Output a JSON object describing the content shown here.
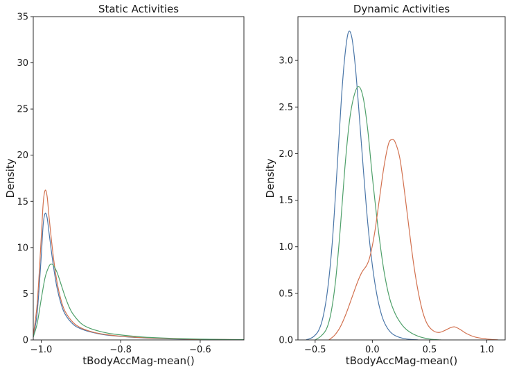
{
  "figure": {
    "background": "#ffffff",
    "text_color": "#1a1a1a",
    "spine_color": "#2b2b2b"
  },
  "chart_data": [
    {
      "type": "line",
      "title": "Static Activities",
      "xlabel": "tBodyAccMag-mean()",
      "ylabel": "Density",
      "xlim": [
        -1.02,
        -0.49
      ],
      "ylim": [
        0,
        35
      ],
      "grid": false,
      "legend": "none",
      "xticks": [
        -1.0,
        -0.8,
        -0.6
      ],
      "xtick_labels": [
        "−1.0",
        "−0.8",
        "−0.6"
      ],
      "yticks": [
        0,
        5,
        10,
        15,
        20,
        25,
        30,
        35
      ],
      "ytick_labels": [
        "0",
        "5",
        "10",
        "15",
        "20",
        "25",
        "30",
        "35"
      ],
      "series": [
        {
          "name": "blue-density",
          "color": "#4a76a8",
          "points": [
            [
              -1.02,
              0.3
            ],
            [
              -1.01,
              3.0
            ],
            [
              -1.0,
              9.0
            ],
            [
              -0.995,
              12.5
            ],
            [
              -0.99,
              13.7
            ],
            [
              -0.985,
              13.2
            ],
            [
              -0.98,
              11.5
            ],
            [
              -0.97,
              8.2
            ],
            [
              -0.96,
              5.6
            ],
            [
              -0.95,
              3.9
            ],
            [
              -0.94,
              2.8
            ],
            [
              -0.92,
              1.7
            ],
            [
              -0.9,
              1.2
            ],
            [
              -0.87,
              0.8
            ],
            [
              -0.84,
              0.55
            ],
            [
              -0.8,
              0.38
            ],
            [
              -0.76,
              0.26
            ],
            [
              -0.72,
              0.18
            ],
            [
              -0.66,
              0.1
            ],
            [
              -0.6,
              0.06
            ],
            [
              -0.55,
              0.04
            ],
            [
              -0.49,
              0.02
            ]
          ]
        },
        {
          "name": "orange-density",
          "color": "#d2714f",
          "points": [
            [
              -1.02,
              0.5
            ],
            [
              -1.01,
              4.0
            ],
            [
              -1.0,
              11.0
            ],
            [
              -0.995,
              14.8
            ],
            [
              -0.99,
              16.2
            ],
            [
              -0.985,
              15.5
            ],
            [
              -0.98,
              13.2
            ],
            [
              -0.97,
              9.2
            ],
            [
              -0.96,
              6.2
            ],
            [
              -0.95,
              4.3
            ],
            [
              -0.94,
              3.1
            ],
            [
              -0.92,
              1.9
            ],
            [
              -0.9,
              1.3
            ],
            [
              -0.87,
              0.85
            ],
            [
              -0.84,
              0.6
            ],
            [
              -0.8,
              0.4
            ],
            [
              -0.76,
              0.28
            ],
            [
              -0.72,
              0.2
            ],
            [
              -0.66,
              0.12
            ],
            [
              -0.6,
              0.07
            ],
            [
              -0.55,
              0.05
            ],
            [
              -0.49,
              0.03
            ]
          ]
        },
        {
          "name": "green-density",
          "color": "#4fa06a",
          "points": [
            [
              -1.02,
              0.3
            ],
            [
              -1.01,
              1.8
            ],
            [
              -1.0,
              4.4
            ],
            [
              -0.99,
              6.8
            ],
            [
              -0.98,
              8.0
            ],
            [
              -0.975,
              8.2
            ],
            [
              -0.97,
              8.1
            ],
            [
              -0.96,
              7.3
            ],
            [
              -0.95,
              6.0
            ],
            [
              -0.94,
              4.7
            ],
            [
              -0.93,
              3.6
            ],
            [
              -0.92,
              2.8
            ],
            [
              -0.9,
              1.8
            ],
            [
              -0.88,
              1.3
            ],
            [
              -0.85,
              0.9
            ],
            [
              -0.82,
              0.65
            ],
            [
              -0.78,
              0.45
            ],
            [
              -0.74,
              0.3
            ],
            [
              -0.7,
              0.22
            ],
            [
              -0.65,
              0.14
            ],
            [
              -0.6,
              0.09
            ],
            [
              -0.55,
              0.05
            ],
            [
              -0.49,
              0.03
            ]
          ]
        }
      ]
    },
    {
      "type": "line",
      "title": "Dynamic Activities",
      "xlabel": "tBodyAccMag-mean()",
      "ylabel": "Density",
      "xlim": [
        -0.65,
        1.16
      ],
      "ylim": [
        0,
        3.47
      ],
      "grid": false,
      "legend": "none",
      "xticks": [
        -0.5,
        0.0,
        0.5,
        1.0
      ],
      "xtick_labels": [
        "−0.5",
        "0.0",
        "0.5",
        "1.0"
      ],
      "yticks": [
        0,
        0.5,
        1.0,
        1.5,
        2.0,
        2.5,
        3.0
      ],
      "ytick_labels": [
        "0.0",
        "0.5",
        "1.0",
        "1.5",
        "2.0",
        "2.5",
        "3.0"
      ],
      "series": [
        {
          "name": "blue-density",
          "color": "#4a76a8",
          "points": [
            [
              -0.58,
              0.0
            ],
            [
              -0.52,
              0.03
            ],
            [
              -0.47,
              0.1
            ],
            [
              -0.43,
              0.25
            ],
            [
              -0.39,
              0.55
            ],
            [
              -0.35,
              1.05
            ],
            [
              -0.31,
              1.8
            ],
            [
              -0.27,
              2.6
            ],
            [
              -0.24,
              3.05
            ],
            [
              -0.21,
              3.3
            ],
            [
              -0.18,
              3.25
            ],
            [
              -0.15,
              2.95
            ],
            [
              -0.12,
              2.5
            ],
            [
              -0.08,
              1.85
            ],
            [
              -0.04,
              1.25
            ],
            [
              0.0,
              0.8
            ],
            [
              0.04,
              0.48
            ],
            [
              0.08,
              0.27
            ],
            [
              0.12,
              0.15
            ],
            [
              0.17,
              0.07
            ],
            [
              0.23,
              0.03
            ],
            [
              0.3,
              0.01
            ],
            [
              0.4,
              0.0
            ]
          ]
        },
        {
          "name": "green-density",
          "color": "#4fa06a",
          "points": [
            [
              -0.5,
              0.0
            ],
            [
              -0.45,
              0.04
            ],
            [
              -0.4,
              0.12
            ],
            [
              -0.36,
              0.3
            ],
            [
              -0.32,
              0.65
            ],
            [
              -0.28,
              1.2
            ],
            [
              -0.24,
              1.85
            ],
            [
              -0.2,
              2.35
            ],
            [
              -0.16,
              2.62
            ],
            [
              -0.12,
              2.72
            ],
            [
              -0.08,
              2.6
            ],
            [
              -0.04,
              2.25
            ],
            [
              0.0,
              1.75
            ],
            [
              0.05,
              1.2
            ],
            [
              0.1,
              0.75
            ],
            [
              0.15,
              0.45
            ],
            [
              0.2,
              0.28
            ],
            [
              0.26,
              0.16
            ],
            [
              0.32,
              0.09
            ],
            [
              0.4,
              0.04
            ],
            [
              0.5,
              0.01
            ],
            [
              0.6,
              0.0
            ]
          ]
        },
        {
          "name": "orange-density",
          "color": "#d2714f",
          "points": [
            [
              -0.38,
              0.0
            ],
            [
              -0.33,
              0.05
            ],
            [
              -0.28,
              0.14
            ],
            [
              -0.23,
              0.28
            ],
            [
              -0.18,
              0.45
            ],
            [
              -0.13,
              0.62
            ],
            [
              -0.09,
              0.73
            ],
            [
              -0.05,
              0.8
            ],
            [
              -0.02,
              0.9
            ],
            [
              0.02,
              1.15
            ],
            [
              0.06,
              1.5
            ],
            [
              0.1,
              1.85
            ],
            [
              0.14,
              2.1
            ],
            [
              0.17,
              2.15
            ],
            [
              0.2,
              2.12
            ],
            [
              0.24,
              1.95
            ],
            [
              0.28,
              1.6
            ],
            [
              0.32,
              1.2
            ],
            [
              0.36,
              0.82
            ],
            [
              0.4,
              0.52
            ],
            [
              0.44,
              0.3
            ],
            [
              0.48,
              0.17
            ],
            [
              0.53,
              0.1
            ],
            [
              0.58,
              0.08
            ],
            [
              0.63,
              0.1
            ],
            [
              0.68,
              0.13
            ],
            [
              0.72,
              0.14
            ],
            [
              0.77,
              0.11
            ],
            [
              0.82,
              0.07
            ],
            [
              0.9,
              0.03
            ],
            [
              1.0,
              0.01
            ],
            [
              1.1,
              0.0
            ]
          ]
        }
      ]
    }
  ]
}
